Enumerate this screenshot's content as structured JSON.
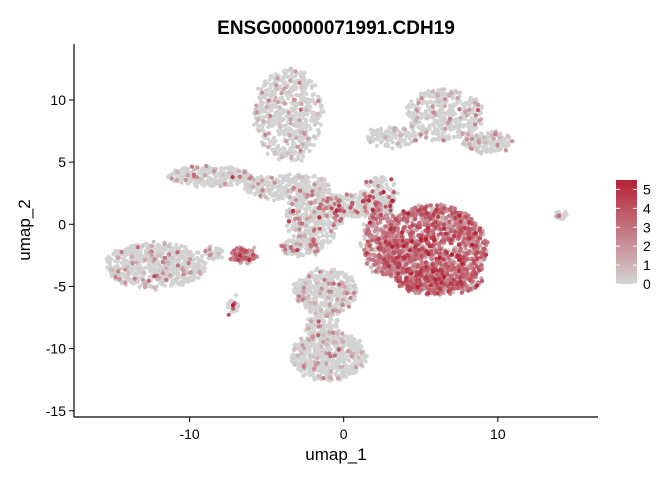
{
  "chart_data": {
    "type": "scatter",
    "title": "ENSG00000071991.CDH19",
    "xlabel": "umap_1",
    "ylabel": "umap_2",
    "xlim": [
      -17.5,
      16.5
    ],
    "ylim": [
      -15.5,
      14.5
    ],
    "x_ticks": [
      -10,
      0,
      10
    ],
    "x_tick_labels": [
      "-10",
      "0",
      "10"
    ],
    "y_ticks": [
      -15,
      -10,
      -5,
      0,
      5,
      10
    ],
    "y_tick_labels": [
      "-15",
      "-10",
      "-5",
      "0",
      "5",
      "10"
    ],
    "grid": false,
    "legend": {
      "placement": "right",
      "type": "colorbar",
      "ticks": [
        0,
        1,
        2,
        3,
        4,
        5
      ],
      "tick_labels": [
        "0",
        "1",
        "2",
        "3",
        "4",
        "5"
      ],
      "range": [
        0,
        5.5
      ],
      "low_color": "#d3d3d3",
      "high_color": "#b52236"
    },
    "clusters": [
      {
        "name": "main",
        "cx": 5.8,
        "cy": -2.0,
        "rx": 3.5,
        "ry": 3.6,
        "n": 1400,
        "expr": 2.6
      },
      {
        "name": "main-lower",
        "cx": 6.2,
        "cy": -4.4,
        "rx": 2.9,
        "ry": 1.3,
        "n": 260,
        "expr": 2.4
      },
      {
        "name": "left-fringe",
        "cx": 2.5,
        "cy": -1.5,
        "rx": 1.3,
        "ry": 2.7,
        "n": 360,
        "expr": 1.6
      },
      {
        "name": "bridge",
        "cx": 0.8,
        "cy": 1.5,
        "rx": 2.5,
        "ry": 1.0,
        "n": 300,
        "expr": 1.2
      },
      {
        "name": "upper-flare",
        "cx": 2.3,
        "cy": 2.5,
        "rx": 1.1,
        "ry": 1.3,
        "n": 110,
        "expr": 1.4
      },
      {
        "name": "center-column",
        "cx": -1.9,
        "cy": 0.6,
        "rx": 1.8,
        "ry": 2.5,
        "n": 420,
        "expr": 0.6
      },
      {
        "name": "upper-left-arm",
        "cx": -3.6,
        "cy": 3.0,
        "rx": 2.8,
        "ry": 1.0,
        "n": 260,
        "expr": 0.5
      },
      {
        "name": "top-center",
        "cx": -3.6,
        "cy": 8.8,
        "rx": 2.2,
        "ry": 3.8,
        "n": 560,
        "expr": 0.35
      },
      {
        "name": "top-right",
        "cx": 6.5,
        "cy": 8.8,
        "rx": 2.5,
        "ry": 2.1,
        "n": 380,
        "expr": 0.3
      },
      {
        "name": "top-right-tail",
        "cx": 3.2,
        "cy": 7.0,
        "rx": 1.8,
        "ry": 0.8,
        "n": 120,
        "expr": 0.3
      },
      {
        "name": "top-right-arm",
        "cx": 9.3,
        "cy": 6.6,
        "rx": 1.6,
        "ry": 0.8,
        "n": 160,
        "expr": 0.3
      },
      {
        "name": "left-arm",
        "cx": -8.6,
        "cy": 3.9,
        "rx": 2.7,
        "ry": 0.8,
        "n": 260,
        "expr": 0.3
      },
      {
        "name": "far-left",
        "cx": -12.2,
        "cy": -3.3,
        "rx": 3.3,
        "ry": 1.8,
        "n": 620,
        "expr": 0.3
      },
      {
        "name": "red-blob",
        "cx": -6.5,
        "cy": -2.5,
        "rx": 0.9,
        "ry": 0.55,
        "n": 90,
        "expr": 2.3
      },
      {
        "name": "small-left",
        "cx": -8.4,
        "cy": -2.3,
        "rx": 0.6,
        "ry": 0.5,
        "n": 40,
        "expr": 0.9
      },
      {
        "name": "center-small",
        "cx": -2.8,
        "cy": -1.8,
        "rx": 1.3,
        "ry": 0.7,
        "n": 130,
        "expr": 1.0
      },
      {
        "name": "center-mid",
        "cx": -1.2,
        "cy": -5.4,
        "rx": 2.0,
        "ry": 1.8,
        "n": 380,
        "expr": 0.45
      },
      {
        "name": "bottom",
        "cx": -1.0,
        "cy": -10.6,
        "rx": 2.4,
        "ry": 2.0,
        "n": 520,
        "expr": 0.25
      },
      {
        "name": "bottom-stem",
        "cx": -1.3,
        "cy": -8.4,
        "rx": 1.1,
        "ry": 1.4,
        "n": 140,
        "expr": 0.3
      },
      {
        "name": "tiny-bottom",
        "cx": -7.2,
        "cy": -6.5,
        "rx": 0.35,
        "ry": 0.7,
        "n": 25,
        "expr": 1.5
      },
      {
        "name": "far-right",
        "cx": 14.1,
        "cy": 0.7,
        "rx": 0.35,
        "ry": 0.3,
        "n": 25,
        "expr": 0.4
      }
    ]
  }
}
